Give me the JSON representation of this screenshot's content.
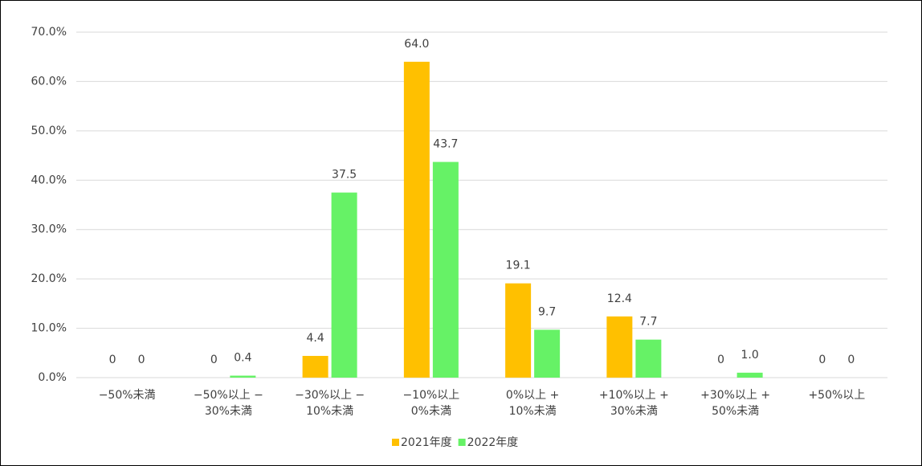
{
  "chart_data": {
    "type": "bar",
    "categories": [
      [
        "−50%未満"
      ],
      [
        "−50%以上 −",
        "30%未満"
      ],
      [
        "−30%以上 −",
        "10%未満"
      ],
      [
        "−10%以上",
        "0%未満"
      ],
      [
        "0%以上 +",
        "10%未満"
      ],
      [
        "+10%以上 +",
        "30%未満"
      ],
      [
        "+30%以上 +",
        "50%未満"
      ],
      [
        "+50%以上"
      ]
    ],
    "series": [
      {
        "name": "2021年度",
        "color": "#ffc000",
        "values": [
          0,
          0,
          4.4,
          64.0,
          19.1,
          12.4,
          0,
          0
        ],
        "value_labels": [
          "0",
          "0",
          "4.4",
          "64.0",
          "19.1",
          "12.4",
          "0",
          "0"
        ]
      },
      {
        "name": "2022年度",
        "color": "#66f266",
        "values": [
          0,
          0.4,
          37.5,
          43.7,
          9.7,
          7.7,
          1.0,
          0
        ],
        "value_labels": [
          "0",
          "0.4",
          "37.5",
          "43.7",
          "9.7",
          "7.7",
          "1.0",
          "0"
        ]
      }
    ],
    "ylim": [
      0,
      70
    ],
    "yticks": [
      {
        "value": 0,
        "label": "0.0%"
      },
      {
        "value": 10,
        "label": "10.0%"
      },
      {
        "value": 20,
        "label": "20.0%"
      },
      {
        "value": 30,
        "label": "30.0%"
      },
      {
        "value": 40,
        "label": "40.0%"
      },
      {
        "value": 50,
        "label": "50.0%"
      },
      {
        "value": 60,
        "label": "60.0%"
      },
      {
        "value": 70,
        "label": "70.0%"
      }
    ],
    "grid": true,
    "legend": "bottom"
  }
}
